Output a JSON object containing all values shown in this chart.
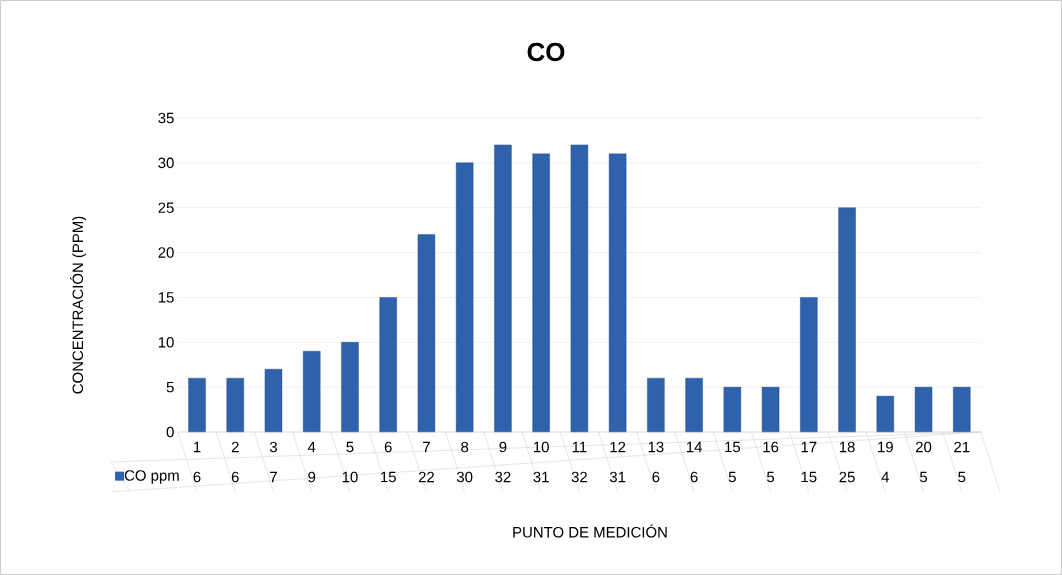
{
  "chart_data": {
    "type": "bar",
    "title": "CO",
    "xlabel": "PUNTO DE MEDICIÓN",
    "ylabel": "CONCENTRACIÓN (PPM)",
    "categories": [
      "1",
      "2",
      "3",
      "4",
      "5",
      "6",
      "7",
      "8",
      "9",
      "10",
      "11",
      "12",
      "13",
      "14",
      "15",
      "16",
      "17",
      "18",
      "19",
      "20",
      "21"
    ],
    "series": [
      {
        "name": "CO ppm",
        "color": "#2f62ad",
        "values": [
          6,
          6,
          7,
          9,
          10,
          15,
          22,
          30,
          32,
          31,
          32,
          31,
          6,
          6,
          5,
          5,
          15,
          25,
          4,
          5,
          5
        ]
      }
    ],
    "ylim": [
      0,
      35
    ],
    "yticks": [
      0,
      5,
      10,
      15,
      20,
      25,
      30,
      35
    ],
    "grid": "y",
    "legend": "bottom",
    "data_labels": true
  }
}
